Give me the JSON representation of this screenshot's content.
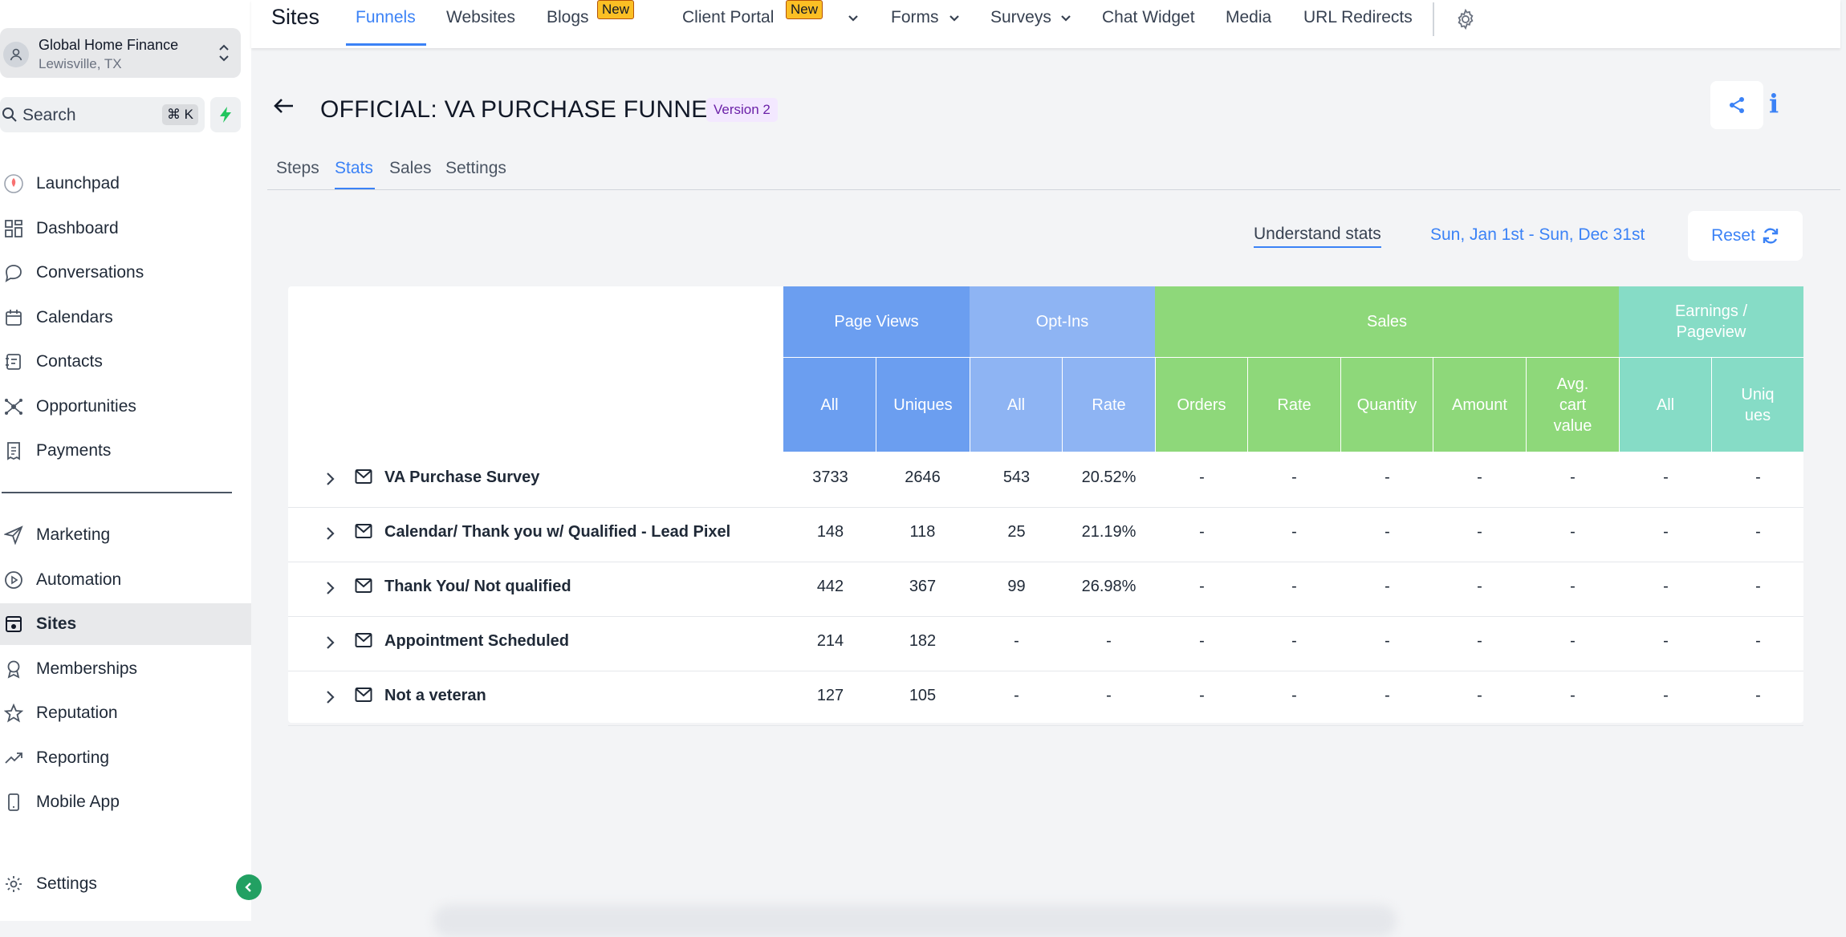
{
  "sidebar": {
    "account": {
      "name": "Global Home Finance",
      "location": "Lewisville, TX"
    },
    "search": {
      "label": "Search",
      "shortcut": "⌘ K"
    },
    "items_top": [
      {
        "label": "Launchpad",
        "icon": "rocket-icon"
      },
      {
        "label": "Dashboard",
        "icon": "grid-icon"
      },
      {
        "label": "Conversations",
        "icon": "chat-icon"
      },
      {
        "label": "Calendars",
        "icon": "calendar-icon"
      },
      {
        "label": "Contacts",
        "icon": "contacts-icon"
      },
      {
        "label": "Opportunities",
        "icon": "opportunities-icon"
      },
      {
        "label": "Payments",
        "icon": "receipt-icon"
      }
    ],
    "items_bottom": [
      {
        "label": "Marketing",
        "icon": "send-icon"
      },
      {
        "label": "Automation",
        "icon": "automation-icon"
      },
      {
        "label": "Sites",
        "icon": "sites-icon",
        "active": true
      },
      {
        "label": "Memberships",
        "icon": "award-icon"
      },
      {
        "label": "Reputation",
        "icon": "star-icon"
      },
      {
        "label": "Reporting",
        "icon": "trend-icon"
      },
      {
        "label": "Mobile App",
        "icon": "phone-icon"
      }
    ],
    "settings_label": "Settings"
  },
  "topbar": {
    "title": "Sites",
    "nav": {
      "funnels": "Funnels",
      "websites": "Websites",
      "blogs": "Blogs",
      "client_portal": "Client Portal",
      "forms": "Forms",
      "surveys": "Surveys",
      "chat_widget": "Chat Widget",
      "media": "Media",
      "url_redirects": "URL Redirects"
    },
    "new_badge": "New"
  },
  "page": {
    "title": "OFFICIAL: VA PURCHASE FUNNEL",
    "version": "Version 2",
    "tabs": {
      "steps": "Steps",
      "stats": "Stats",
      "sales": "Sales",
      "settings": "Settings"
    },
    "understand_stats": "Understand stats",
    "date_range": "Sun, Jan 1st - Sun, Dec 31st",
    "reset": "Reset"
  },
  "table": {
    "groups": {
      "page_views": "Page Views",
      "opt_ins": "Opt-Ins",
      "sales": "Sales",
      "earnings_line1": "Earnings /",
      "earnings_line2": "Pageview"
    },
    "sub": {
      "pv_all": "All",
      "pv_uniques": "Uniques",
      "oi_all": "All",
      "oi_rate": "Rate",
      "s_orders": "Orders",
      "s_rate": "Rate",
      "s_quantity": "Quantity",
      "s_amount": "Amount",
      "s_avg1": "Avg.",
      "s_avg2": "cart",
      "s_avg3": "value",
      "e_all": "All",
      "e_uniq1": "Uniq",
      "e_uniq2": "ues"
    },
    "rows": [
      {
        "name": "VA Purchase Survey",
        "cells": [
          "3733",
          "2646",
          "543",
          "20.52%",
          "-",
          "-",
          "-",
          "-",
          "-",
          "-",
          "-"
        ]
      },
      {
        "name": "Calendar/ Thank you w/ Qualified - Lead Pixel",
        "cells": [
          "148",
          "118",
          "25",
          "21.19%",
          "-",
          "-",
          "-",
          "-",
          "-",
          "-",
          "-"
        ]
      },
      {
        "name": "Thank You/ Not qualified",
        "cells": [
          "442",
          "367",
          "99",
          "26.98%",
          "-",
          "-",
          "-",
          "-",
          "-",
          "-",
          "-"
        ]
      },
      {
        "name": "Appointment Scheduled",
        "cells": [
          "214",
          "182",
          "-",
          "-",
          "-",
          "-",
          "-",
          "-",
          "-",
          "-",
          "-"
        ]
      },
      {
        "name": "Not a veteran",
        "cells": [
          "127",
          "105",
          "-",
          "-",
          "-",
          "-",
          "-",
          "-",
          "-",
          "-",
          "-"
        ]
      }
    ]
  },
  "colors": {
    "accent": "#3b82f6",
    "page_views_header": "#6b9ef0",
    "opt_ins_header": "#8eb4f3",
    "sales_header": "#8ed87a",
    "earnings_header": "#86dcc6",
    "sites_logo_green": "#22a062"
  }
}
